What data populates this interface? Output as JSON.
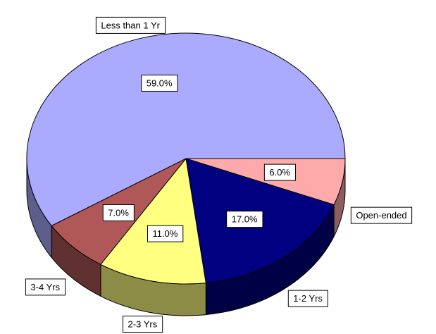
{
  "chart_data": {
    "type": "pie",
    "categories": [
      "Open-ended",
      "1-2 Yrs",
      "2-3 Yrs",
      "3-4 Yrs",
      "Less than 1 Yr"
    ],
    "values": [
      6,
      17,
      11,
      7,
      59
    ],
    "value_labels": [
      "6.0%",
      "17.0%",
      "11.0%",
      "7.0%",
      "59.0%"
    ],
    "colors": [
      "#ffaaaa",
      "#000080",
      "#ffff80",
      "#b05858",
      "#aaaaff"
    ]
  }
}
